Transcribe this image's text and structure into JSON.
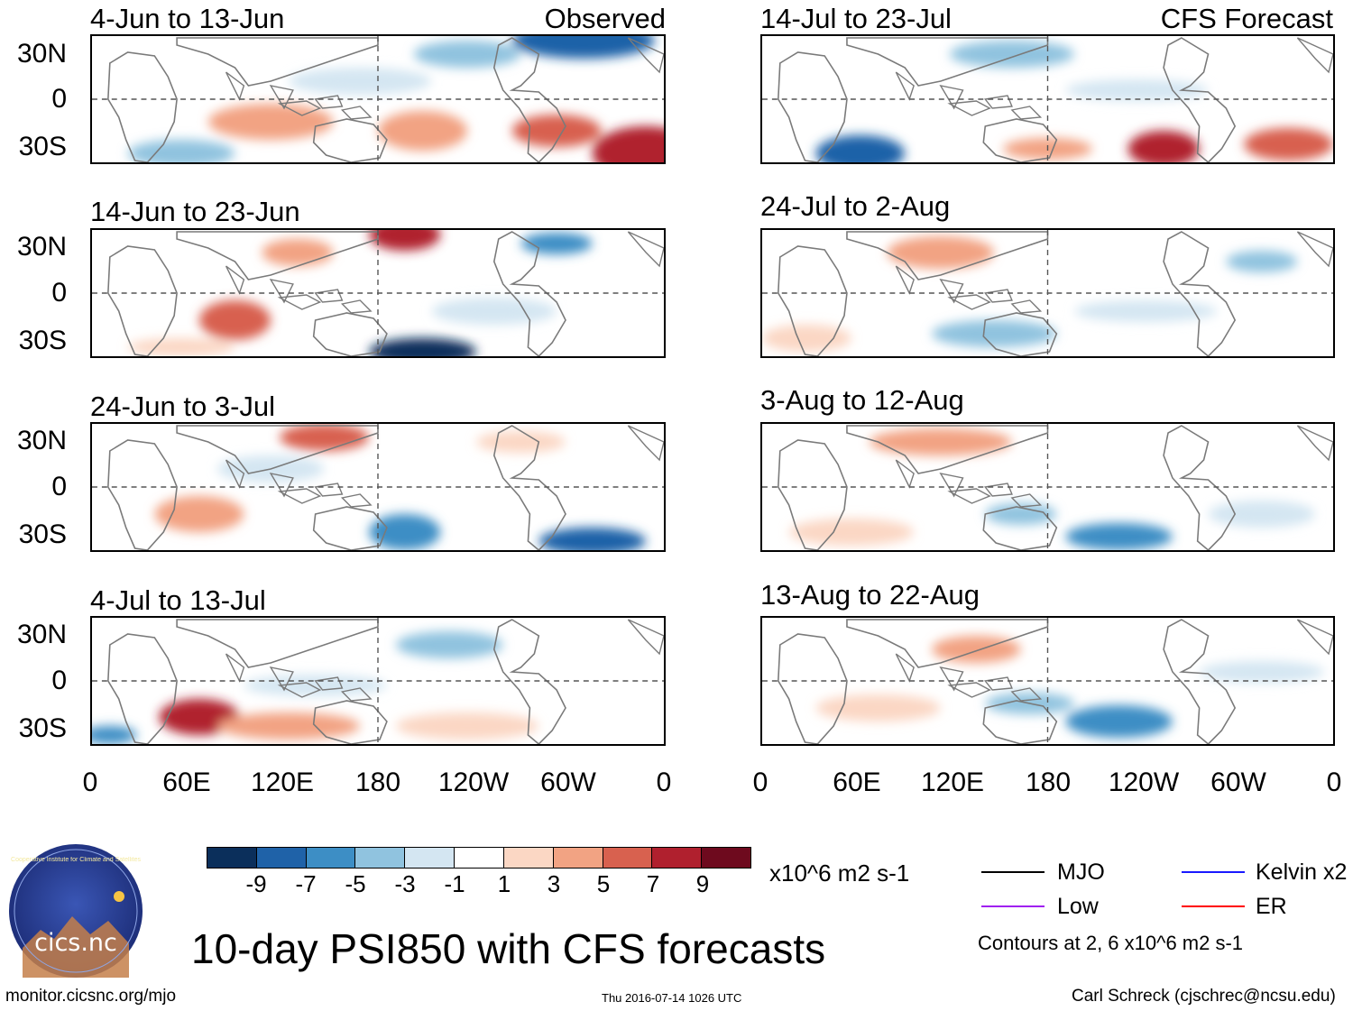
{
  "panels": {
    "observed": [
      {
        "title": "4-Jun to 13-Jun",
        "label": "Observed"
      },
      {
        "title": "14-Jun to 23-Jun"
      },
      {
        "title": "24-Jun to 3-Jul"
      },
      {
        "title": "4-Jul to 13-Jul"
      }
    ],
    "forecast": [
      {
        "title": "14-Jul to 23-Jul",
        "label": "CFS Forecast"
      },
      {
        "title": "24-Jul to 2-Aug"
      },
      {
        "title": "3-Aug to 12-Aug"
      },
      {
        "title": "13-Aug to 22-Aug"
      }
    ]
  },
  "axes": {
    "lat_labels": [
      "30N",
      "0",
      "30S"
    ],
    "lon_labels": [
      "0",
      "60E",
      "120E",
      "180",
      "120W",
      "60W",
      "0"
    ]
  },
  "colorbar": {
    "colors": [
      "#0b2f5b",
      "#1f62a8",
      "#3d8ec5",
      "#90c3df",
      "#d4e6f2",
      "#ffffff",
      "#fbd7c4",
      "#f2a383",
      "#d8614f",
      "#b0202e",
      "#6e0a1e"
    ],
    "labels": [
      "-9",
      "-7",
      "-5",
      "-3",
      "-1",
      "1",
      "3",
      "5",
      "7",
      "9"
    ],
    "units": "x10^6 m2 s-1"
  },
  "legend": {
    "items": [
      {
        "name": "MJO",
        "color": "#000000"
      },
      {
        "name": "Kelvin x2",
        "color": "#1a1aff"
      },
      {
        "name": "Low",
        "color": "#a020f0"
      },
      {
        "name": "ER",
        "color": "#ff0000"
      }
    ],
    "note": "Contours at 2, 6 x10^6 m2 s-1"
  },
  "logo": {
    "text": "cics.nc",
    "ring_text": "Cooperative Institute for Climate and Satellites"
  },
  "title": "10-day PSI850 with CFS forecasts",
  "footer": {
    "left": "monitor.cicsnc.org/mjo",
    "center": "Thu 2016-07-14 1026 UTC",
    "right": "Carl Schreck (cjschrec@ncsu.edu)"
  }
}
